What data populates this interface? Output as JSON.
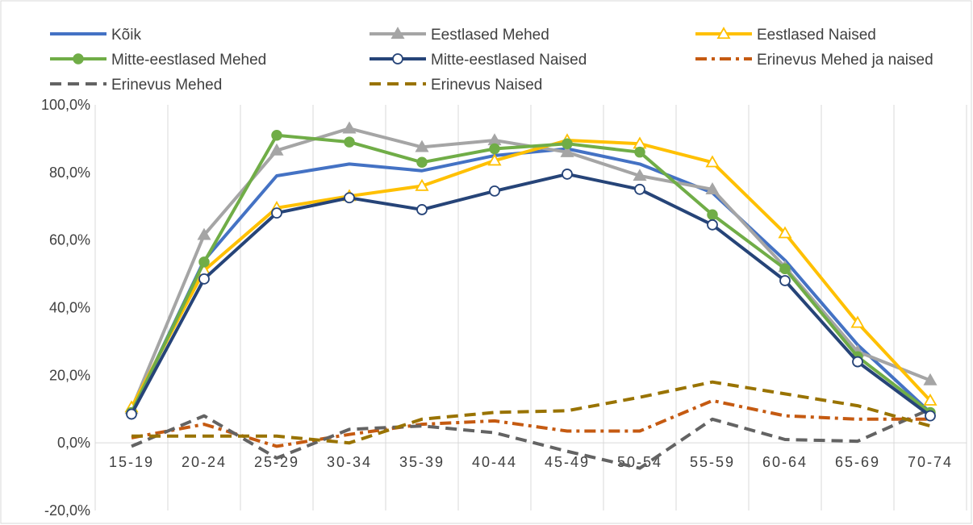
{
  "chart_data": {
    "type": "line",
    "title": "",
    "xlabel": "",
    "ylabel": "",
    "categories": [
      "15-19",
      "20-24",
      "25-29",
      "30-34",
      "35-39",
      "40-44",
      "45-49",
      "50-54",
      "55-59",
      "60-64",
      "65-69",
      "70-74"
    ],
    "ylim": [
      -20,
      100
    ],
    "y_ticks": [
      -20,
      0,
      20,
      40,
      60,
      80,
      100
    ],
    "y_tick_labels": [
      "-20,0%",
      "0,0%",
      "20,0%",
      "40,0%",
      "60,0%",
      "80,0%",
      "100,0%"
    ],
    "grid": "vertical",
    "legend_position": "top",
    "series": [
      {
        "name": "Kõik",
        "color": "#4472C4",
        "dash": "solid",
        "marker": "none",
        "values": [
          9,
          54,
          79,
          82.5,
          80.5,
          85,
          87,
          82.5,
          74,
          54,
          29,
          9
        ]
      },
      {
        "name": "Eestlased Mehed",
        "color": "#A5A5A5",
        "dash": "solid",
        "marker": "triangle-filled",
        "values": [
          10,
          61.5,
          86.5,
          93,
          87.5,
          89.5,
          86,
          79,
          75,
          52,
          27,
          18.5
        ]
      },
      {
        "name": "Eestlased Naised",
        "color": "#FFC000",
        "dash": "solid",
        "marker": "triangle-open",
        "values": [
          10.5,
          51,
          69.5,
          73,
          76,
          83.5,
          89.5,
          88.5,
          83,
          62,
          35.5,
          12.5
        ]
      },
      {
        "name": "Mitte-eestlased Mehed",
        "color": "#70AD47",
        "dash": "solid",
        "marker": "circle-filled",
        "values": [
          9,
          53.5,
          91,
          89,
          83,
          87,
          88.5,
          86,
          67.5,
          51.5,
          25.5,
          9
        ]
      },
      {
        "name": "Mitte-eestlased Naised",
        "color": "#264478",
        "dash": "solid",
        "marker": "circle-open",
        "values": [
          8.5,
          48.5,
          68,
          72.5,
          69,
          74.5,
          79.5,
          75,
          64.5,
          48,
          24,
          8
        ]
      },
      {
        "name": "Erinevus Mehed ja naised",
        "color": "#C55A11",
        "dash": "dashdot",
        "marker": "none",
        "values": [
          1.5,
          5.5,
          -1,
          2.5,
          5.5,
          6.5,
          3.5,
          3.5,
          12.5,
          8,
          7,
          7
        ]
      },
      {
        "name": "Erinevus Mehed",
        "color": "#636363",
        "dash": "dash",
        "marker": "none",
        "values": [
          -1,
          8,
          -4.5,
          4,
          5,
          3,
          -2.5,
          -7.5,
          7,
          1,
          0.5,
          10
        ]
      },
      {
        "name": "Erinevus Naised",
        "color": "#997300",
        "dash": "dash",
        "marker": "none",
        "values": [
          2,
          2,
          2,
          0,
          7,
          9,
          9.5,
          13.5,
          18,
          14.5,
          11,
          5
        ]
      }
    ]
  }
}
